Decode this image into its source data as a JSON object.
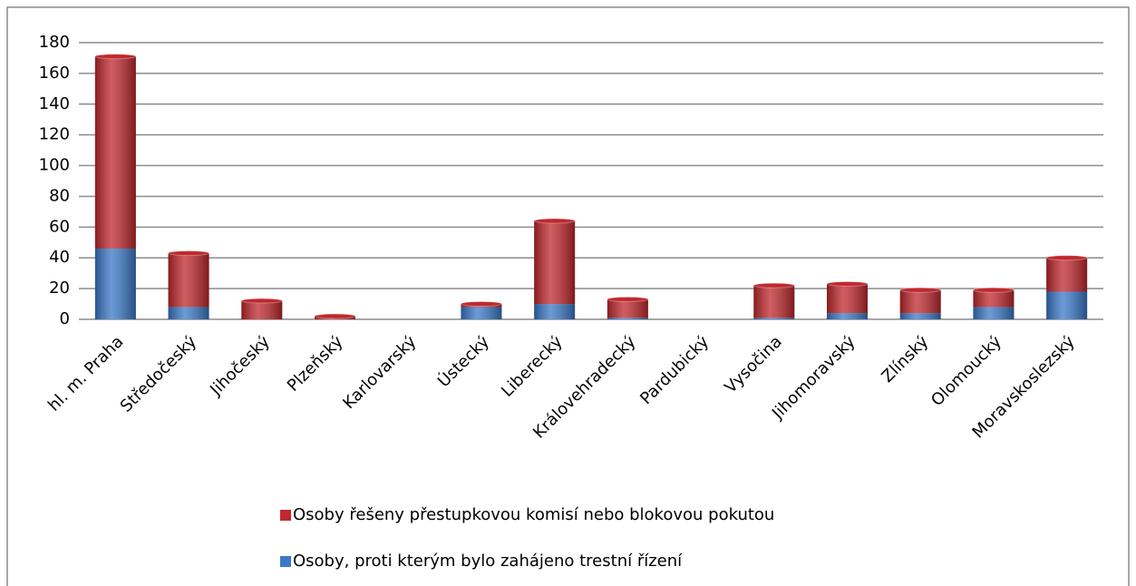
{
  "chart_data": {
    "type": "bar",
    "stacked": true,
    "categories": [
      "hl. m. Praha",
      "Středočeský",
      "Jihočeský",
      "Plzeňský",
      "Karlovarský",
      "Ústecký",
      "Liberecký",
      "Královehradecký",
      "Pardubický",
      "Vysočina",
      "Jihomoravský",
      "Zlínský",
      "Olomoucký",
      "Moravskoslezský"
    ],
    "series": [
      {
        "name": "Osoby, proti kterým bylo zahájeno trestní řízení",
        "color": "#3a78c8",
        "values": [
          46,
          8,
          0,
          0,
          0,
          8,
          10,
          1,
          0,
          1,
          4,
          4,
          8,
          18
        ]
      },
      {
        "name": "Osoby řešeny přestupkovou komisí nebo blokovou pokutou",
        "color": "#c0282d",
        "values": [
          125,
          35,
          12,
          2,
          0,
          2,
          54,
          12,
          0,
          21,
          19,
          15,
          11,
          22
        ]
      }
    ],
    "ylim": [
      0,
      180
    ],
    "yticks": [
      0,
      20,
      40,
      60,
      80,
      100,
      120,
      140,
      160,
      180
    ],
    "grid": true,
    "legend": "bottom"
  }
}
